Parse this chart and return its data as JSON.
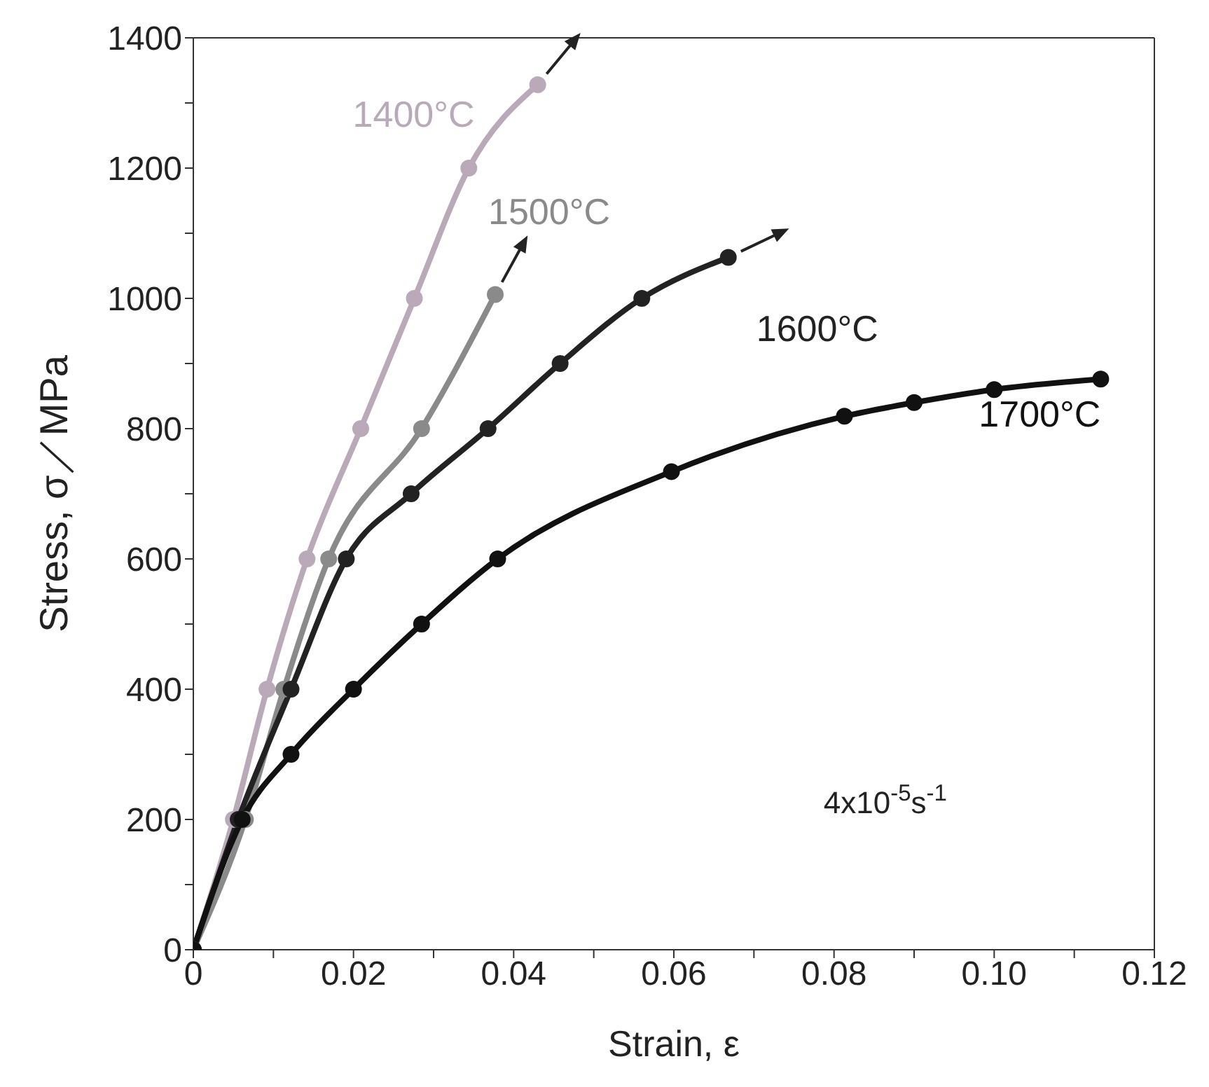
{
  "chart_data": {
    "type": "line",
    "xlabel": "Strain,  ε",
    "ylabel": "Stress,  σ／MPa",
    "xlim": [
      0,
      0.12
    ],
    "ylim": [
      0,
      1400
    ],
    "xticks": [
      0,
      {
        "value": 0.01,
        "label": null
      },
      "0.02",
      {
        "value": 0.03,
        "label": null
      },
      0.04,
      {
        "value": 0.05,
        "label": null
      },
      0.06,
      {
        "value": 0.07,
        "label": null
      },
      0.08,
      {
        "value": 0.09,
        "label": null
      },
      {
        "value": 0.1,
        "label": "0.10"
      },
      {
        "value": 0.11,
        "label": null
      },
      0.12
    ],
    "yticks": [
      0,
      {
        "value": 100,
        "label": null
      },
      200,
      {
        "value": 300,
        "label": null
      },
      400,
      {
        "value": 500,
        "label": null
      },
      600,
      {
        "value": 700,
        "label": null
      },
      800,
      {
        "value": 900,
        "label": null
      },
      1000,
      {
        "value": 1100,
        "label": null
      },
      1200,
      {
        "value": 1300,
        "label": null
      },
      1400
    ],
    "marker": "circle",
    "legend": false,
    "grid": false,
    "annotations": [
      "4x10$^{-5}$s$^{-1}$"
    ],
    "series": [
      {
        "name": "1400°C",
        "color": "#b9a9b9",
        "x": [
          0,
          0.005,
          0.0092,
          0.0142,
          0.0209,
          0.0276,
          0.0344,
          0.043
        ],
        "values": [
          0,
          200,
          400,
          600,
          800,
          1000,
          1200,
          1328
        ]
      },
      {
        "name": "1500°C",
        "color": "#8a8a8a",
        "x": [
          0,
          0.0065,
          0.0113,
          0.0169,
          0.0285,
          0.0377
        ],
        "values": [
          0,
          200,
          400,
          600,
          800,
          1006
        ]
      },
      {
        "name": "1600°C",
        "color": "#222222",
        "x": [
          0,
          0.0056,
          0.0122,
          0.0191,
          0.0272,
          0.0368,
          0.0458,
          0.056,
          0.0668
        ],
        "values": [
          0,
          200,
          400,
          600,
          700,
          800,
          900,
          1000,
          1063
        ]
      },
      {
        "name": "1700°C",
        "color": "#111111",
        "x": [
          0,
          0.0061,
          0.0122,
          0.02,
          0.0285,
          0.038,
          0.0597,
          0.0813,
          0.09,
          0.1,
          0.1133
        ],
        "values": [
          0,
          200,
          300,
          400,
          500,
          600,
          734,
          819,
          840,
          860,
          876
        ]
      }
    ]
  }
}
